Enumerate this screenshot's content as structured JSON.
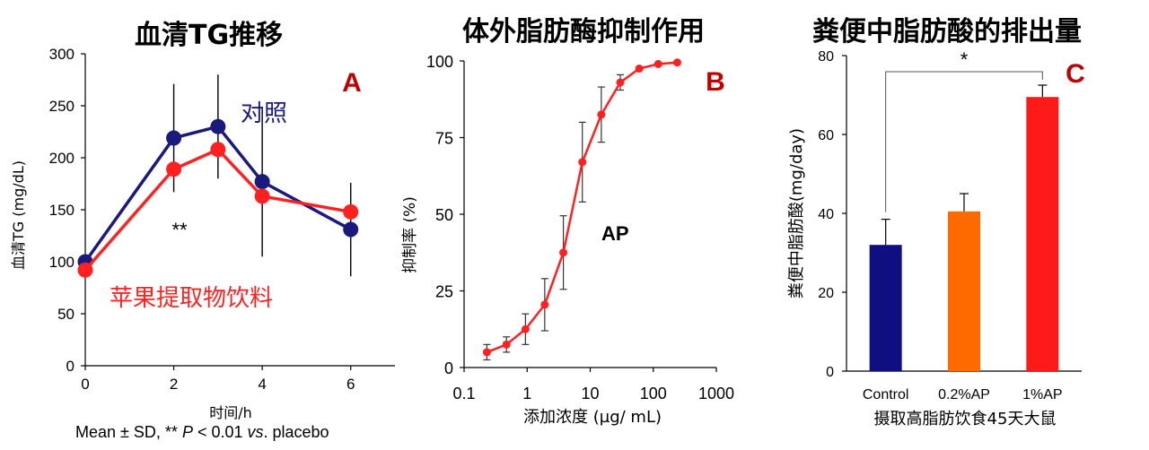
{
  "chart_data": [
    {
      "type": "line",
      "panel_label": "A",
      "title": "血清TG推移",
      "xlabel": "时间/h",
      "ylabel": "血清TG (mg/dL)",
      "xlim": [
        0,
        7
      ],
      "ylim": [
        0,
        300
      ],
      "x_ticks": [
        "0",
        "2",
        "4",
        "6"
      ],
      "y_ticks": [
        "0",
        "50",
        "100",
        "150",
        "200",
        "250",
        "300"
      ],
      "x": [
        0,
        2,
        3,
        4,
        6
      ],
      "series": [
        {
          "name": "对照",
          "color": "#1a1a7e",
          "values": [
            100,
            219,
            230,
            177,
            131
          ],
          "sd": [
            0,
            52,
            50,
            72,
            45
          ]
        },
        {
          "name": "苹果提取物饮料",
          "color": "#ff2020",
          "values": [
            92,
            189,
            208,
            163,
            148
          ],
          "sd": [
            0,
            0,
            0,
            0,
            0
          ]
        }
      ],
      "annotation": "**",
      "footnote": {
        "pre": "Mean ± SD, ** ",
        "p": "P",
        "mid": " < 0.01 ",
        "vs": "vs",
        "post": ". placebo"
      }
    },
    {
      "type": "line",
      "panel_label": "B",
      "title": "体外脂肪酶抑制作用",
      "xlabel": "添加浓度 (µg/ mL)",
      "ylabel": "抑制率 (%)",
      "x_scale": "log",
      "xlim": [
        0.1,
        1000
      ],
      "ylim": [
        0,
        100
      ],
      "x_ticks": [
        "0.1",
        "1",
        "10",
        "100",
        "1000"
      ],
      "y_ticks": [
        "0",
        "25",
        "50",
        "75",
        "100"
      ],
      "x": [
        0.23,
        0.47,
        0.94,
        1.9,
        3.75,
        7.5,
        15,
        30,
        60,
        120,
        240
      ],
      "series": [
        {
          "name": "AP",
          "color": "#ff2020",
          "values": [
            5,
            7.5,
            12.5,
            20.5,
            37.5,
            67,
            82.5,
            93,
            97.5,
            99,
            99.5
          ],
          "sd": [
            2.5,
            2.5,
            5,
            8.5,
            12,
            13,
            9,
            2.5,
            0,
            0,
            0
          ]
        }
      ],
      "annotation": "AP"
    },
    {
      "type": "bar",
      "panel_label": "C",
      "title": "粪便中脂肪酸的排出量",
      "xlabel": "摄取高脂肪饮食45天大鼠",
      "ylabel": "粪便中脂肪酸(mg/day)",
      "ylim": [
        0,
        80
      ],
      "y_ticks": [
        "0",
        "20",
        "40",
        "60",
        "80"
      ],
      "categories": [
        "Control",
        "0.2%AP",
        "1%AP"
      ],
      "values": [
        32,
        40.5,
        69.5
      ],
      "sd": [
        6.5,
        4.5,
        3
      ],
      "colors": [
        "#0f0f82",
        "#ff6a00",
        "#ff1a1a"
      ],
      "annotation": "*"
    }
  ]
}
